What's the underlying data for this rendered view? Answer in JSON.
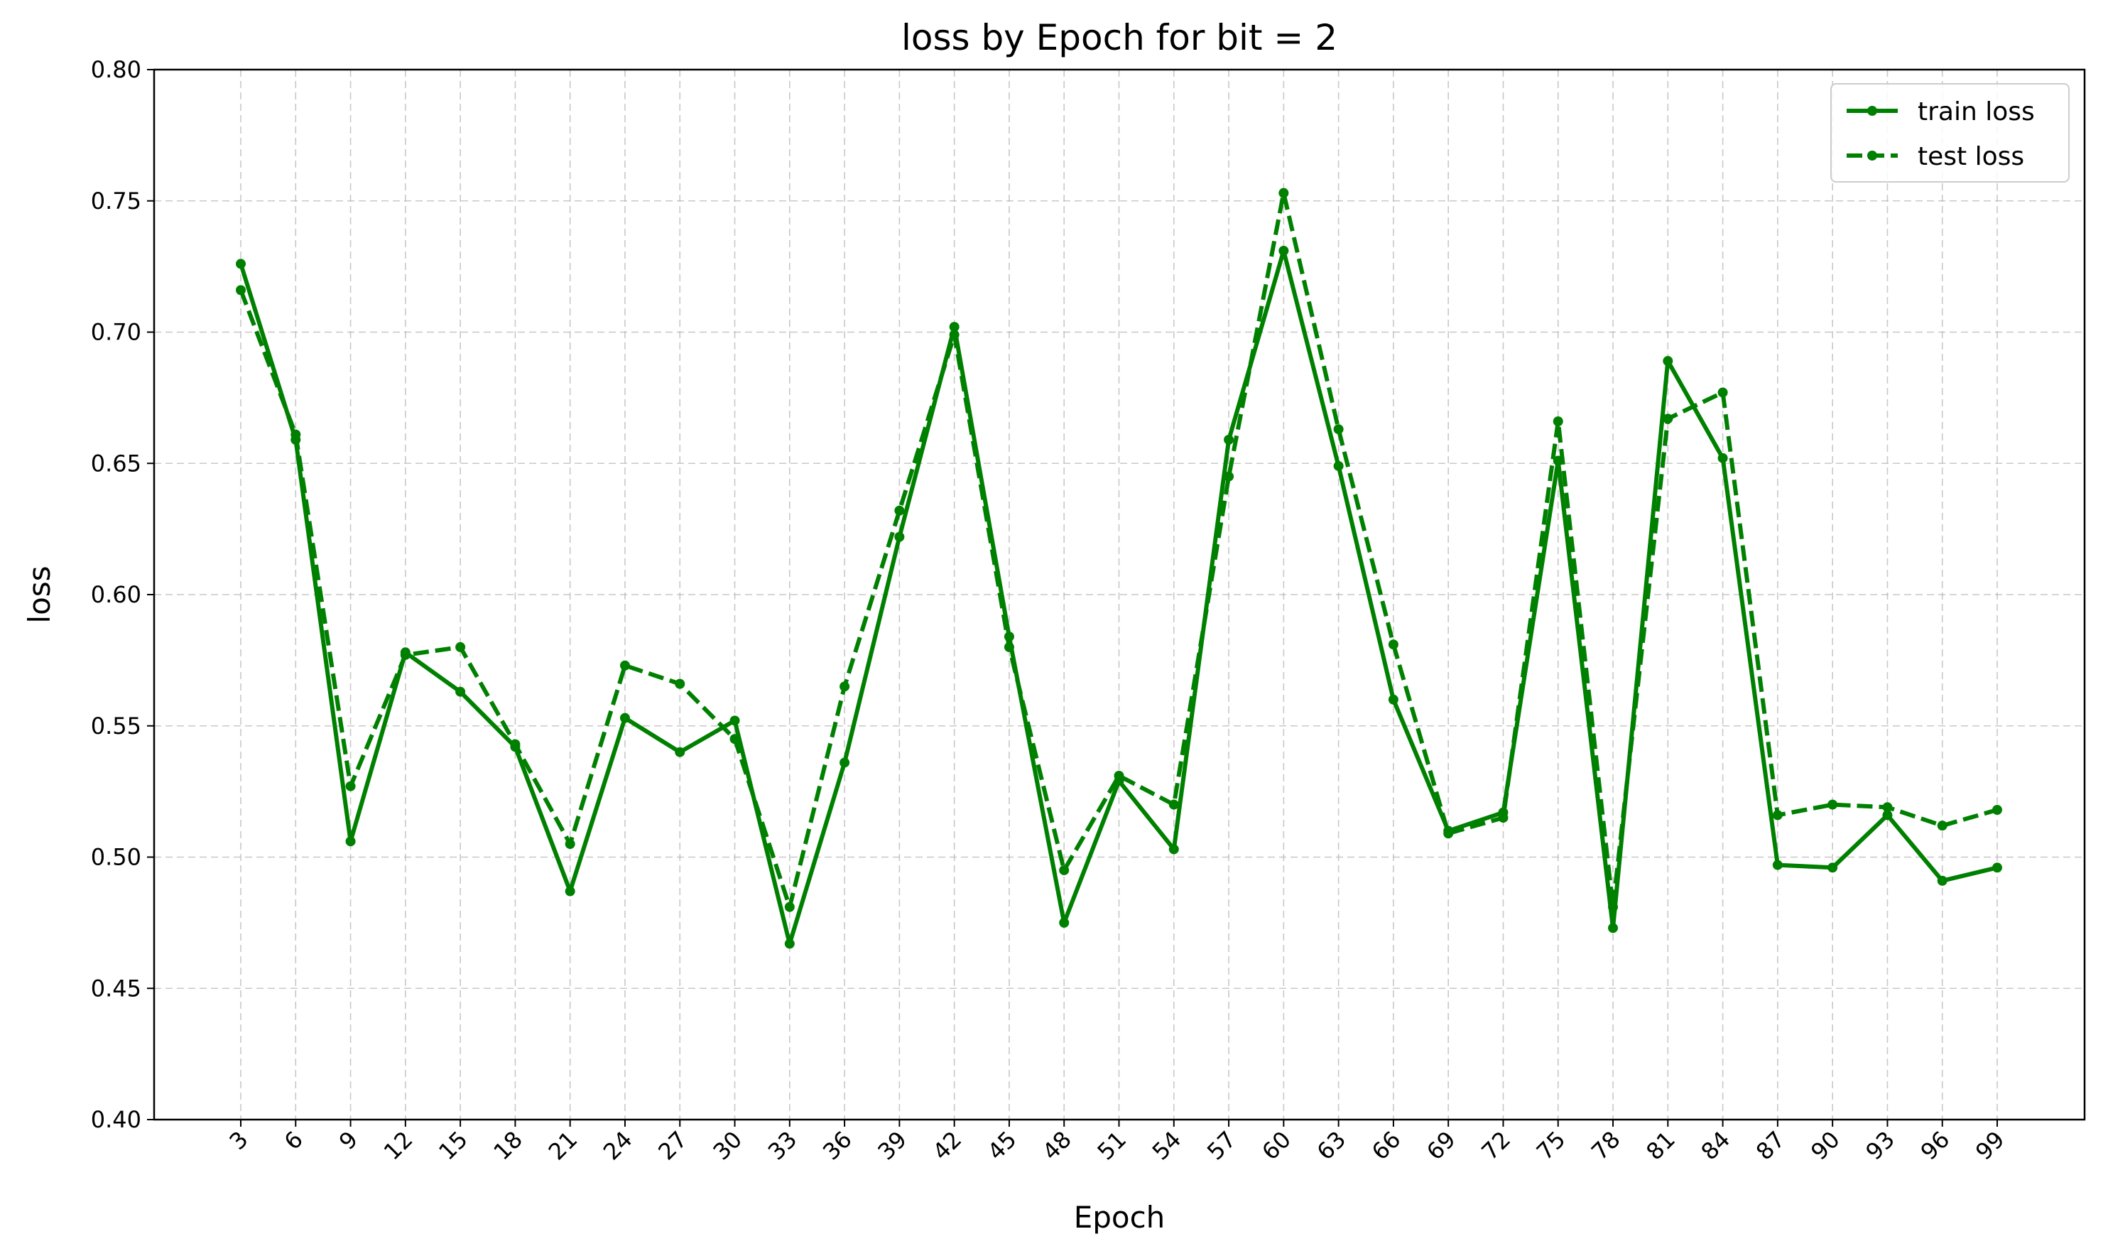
{
  "chart_data": {
    "type": "line",
    "title": "loss by Epoch for bit = 2",
    "xlabel": "Epoch",
    "ylabel": "loss",
    "ylim": [
      0.4,
      0.8
    ],
    "yticks": [
      "0.40",
      "0.45",
      "0.50",
      "0.55",
      "0.60",
      "0.65",
      "0.70",
      "0.75",
      "0.80"
    ],
    "x": [
      3,
      6,
      9,
      12,
      15,
      18,
      21,
      24,
      27,
      30,
      33,
      36,
      39,
      42,
      45,
      48,
      51,
      54,
      57,
      60,
      63,
      66,
      69,
      72,
      75,
      78,
      81,
      84,
      87,
      90,
      93,
      96,
      99
    ],
    "grid": true,
    "legend_position": "top-right",
    "series": [
      {
        "name": "train loss",
        "style": "solid",
        "color": "#008000",
        "values": [
          0.726,
          0.659,
          0.506,
          0.578,
          0.563,
          0.542,
          0.487,
          0.553,
          0.54,
          0.552,
          0.467,
          0.536,
          0.622,
          0.702,
          0.584,
          0.475,
          0.529,
          0.503,
          0.659,
          0.731,
          0.649,
          0.56,
          0.51,
          0.517,
          0.651,
          0.473,
          0.689,
          0.652,
          0.497,
          0.496,
          0.516,
          0.491,
          0.496
        ]
      },
      {
        "name": "test loss",
        "style": "dashed",
        "color": "#008000",
        "values": [
          0.716,
          0.661,
          0.527,
          0.577,
          0.58,
          0.543,
          0.505,
          0.573,
          0.566,
          0.545,
          0.481,
          0.565,
          0.632,
          0.699,
          0.58,
          0.495,
          0.531,
          0.52,
          0.645,
          0.753,
          0.663,
          0.581,
          0.509,
          0.515,
          0.666,
          0.481,
          0.667,
          0.677,
          0.516,
          0.52,
          0.519,
          0.512,
          0.518
        ]
      }
    ]
  }
}
